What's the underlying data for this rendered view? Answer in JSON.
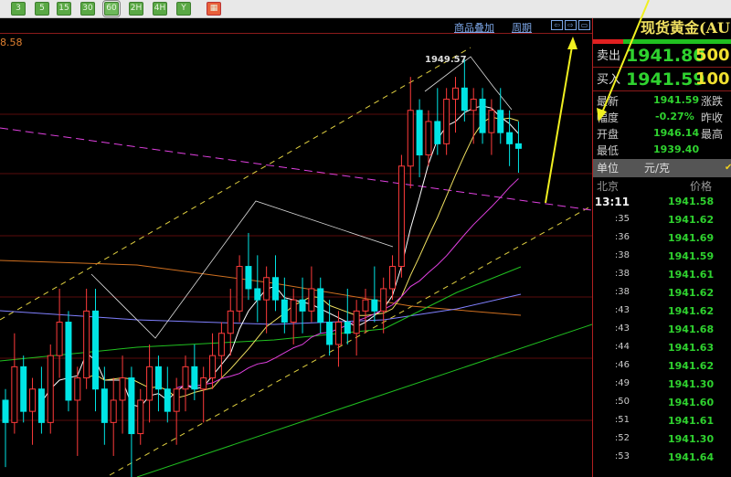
{
  "toolbar": {
    "periods": [
      "3",
      "5",
      "15",
      "30",
      "60",
      "2H",
      "4H",
      "Y"
    ],
    "selected": "60",
    "calendar_icon": "calendar-icon"
  },
  "chart_header": {
    "overlay_link": "商品叠加",
    "period_link": "周期",
    "nav_icons": [
      "arrow-left-icon",
      "arrow-right-icon",
      "maximize-icon"
    ]
  },
  "chart": {
    "partial_axis_label": "8.58",
    "peak_label": "1949.57",
    "colors": {
      "up": "#ff3b3b",
      "down": "#00e5e5",
      "ma5": "#ffffff",
      "ma10": "#f0e060",
      "ma20": "#e040e0",
      "ma60": "#20c020",
      "ma120": "#8080ff",
      "ma250": "#d07020"
    },
    "candles": [
      [
        1919,
        1920,
        1913,
        1917
      ],
      [
        1917,
        1925,
        1916,
        1922
      ],
      [
        1922,
        1923,
        1917,
        1918
      ],
      [
        1918,
        1921,
        1915,
        1920
      ],
      [
        1920,
        1922,
        1916,
        1917
      ],
      [
        1917,
        1924,
        1916,
        1923
      ],
      [
        1923,
        1929,
        1921,
        1926
      ],
      [
        1926,
        1927,
        1918,
        1919
      ],
      [
        1919,
        1922,
        1914,
        1921
      ],
      [
        1921,
        1929,
        1920,
        1927
      ],
      [
        1927,
        1929,
        1918,
        1920
      ],
      [
        1920,
        1922,
        1915,
        1917
      ],
      [
        1917,
        1921,
        1914,
        1919
      ],
      [
        1919,
        1923,
        1916,
        1921
      ],
      [
        1921,
        1922,
        1912,
        1916
      ],
      [
        1916,
        1920,
        1915,
        1919
      ],
      [
        1919,
        1924,
        1917,
        1922
      ],
      [
        1922,
        1923,
        1918,
        1920
      ],
      [
        1920,
        1922,
        1917,
        1918
      ],
      [
        1918,
        1921,
        1915,
        1920
      ],
      [
        1920,
        1923,
        1918,
        1922
      ],
      [
        1922,
        1924,
        1919,
        1920
      ],
      [
        1920,
        1922,
        1917,
        1921
      ],
      [
        1921,
        1925,
        1920,
        1923
      ],
      [
        1923,
        1926,
        1921,
        1925
      ],
      [
        1925,
        1929,
        1923,
        1927
      ],
      [
        1927,
        1932,
        1926,
        1931
      ],
      [
        1931,
        1934,
        1928,
        1929
      ],
      [
        1929,
        1932,
        1926,
        1928
      ],
      [
        1928,
        1931,
        1925,
        1930
      ],
      [
        1930,
        1932,
        1927,
        1928
      ],
      [
        1928,
        1930,
        1925,
        1926
      ],
      [
        1926,
        1929,
        1924,
        1928
      ],
      [
        1928,
        1930,
        1925,
        1927
      ],
      [
        1927,
        1931,
        1926,
        1929
      ],
      [
        1929,
        1930,
        1925,
        1926
      ],
      [
        1926,
        1928,
        1923,
        1924
      ],
      [
        1924,
        1927,
        1922,
        1926
      ],
      [
        1926,
        1929,
        1924,
        1925
      ],
      [
        1925,
        1928,
        1923,
        1927
      ],
      [
        1927,
        1929,
        1925,
        1928
      ],
      [
        1928,
        1931,
        1926,
        1927
      ],
      [
        1927,
        1930,
        1925,
        1929
      ],
      [
        1929,
        1932,
        1928,
        1931
      ],
      [
        1931,
        1941,
        1930,
        1940
      ],
      [
        1940,
        1948,
        1938,
        1945
      ],
      [
        1945,
        1946,
        1939,
        1941
      ],
      [
        1941,
        1945,
        1940,
        1944
      ],
      [
        1944,
        1947,
        1941,
        1942
      ],
      [
        1942,
        1947,
        1941,
        1946
      ],
      [
        1946,
        1948,
        1943,
        1947
      ],
      [
        1947,
        1949.57,
        1944,
        1945
      ],
      [
        1945,
        1947,
        1942,
        1946
      ],
      [
        1946,
        1947,
        1942,
        1943
      ],
      [
        1943,
        1946,
        1941,
        1945
      ],
      [
        1945,
        1947,
        1942,
        1943
      ],
      [
        1943,
        1945,
        1940,
        1942
      ],
      [
        1942,
        1944,
        1939.4,
        1941.59
      ]
    ]
  },
  "panel": {
    "title": "现货黄金(AU",
    "sell": {
      "label": "卖出",
      "price": "1941.80",
      "volume": "500"
    },
    "buy": {
      "label": "买入",
      "price": "1941.59",
      "volume": "100"
    },
    "stats": [
      {
        "label": "最新",
        "value": "1941.59"
      },
      {
        "label": "幅度",
        "value": "-0.27%"
      },
      {
        "label": "开盘",
        "value": "1946.14"
      },
      {
        "label": "最低",
        "value": "1939.40"
      }
    ],
    "stats_right": [
      "涨跌",
      "昨收",
      "最高"
    ],
    "unit_label": "单位",
    "unit_value": "元/克",
    "ticks_header": {
      "location": "北京",
      "price": "价格"
    },
    "ticks": [
      {
        "time": "13:11",
        "price": "1941.58"
      },
      {
        "time": ":35",
        "price": "1941.62"
      },
      {
        "time": ":36",
        "price": "1941.69"
      },
      {
        "time": ":38",
        "price": "1941.59"
      },
      {
        "time": ":38",
        "price": "1941.61"
      },
      {
        "time": ":38",
        "price": "1941.62"
      },
      {
        "time": ":43",
        "price": "1941.62"
      },
      {
        "time": ":43",
        "price": "1941.68"
      },
      {
        "time": ":44",
        "price": "1941.63"
      },
      {
        "time": ":46",
        "price": "1941.62"
      },
      {
        "time": ":49",
        "price": "1941.30"
      },
      {
        "time": ":50",
        "price": "1941.60"
      },
      {
        "time": ":51",
        "price": "1941.61"
      },
      {
        "time": ":52",
        "price": "1941.30"
      },
      {
        "time": ":53",
        "price": "1941.64"
      }
    ]
  }
}
